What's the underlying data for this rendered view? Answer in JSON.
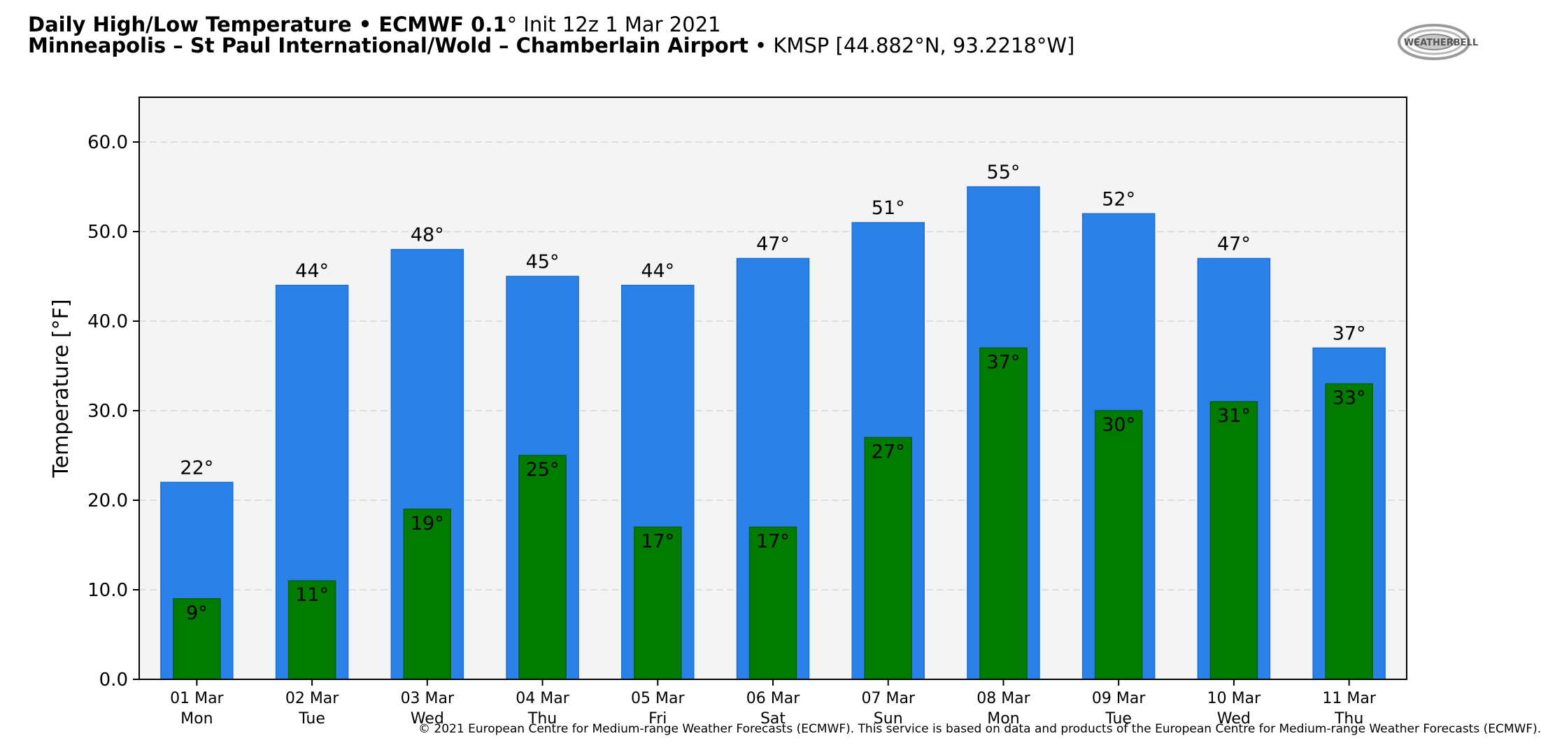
{
  "header": {
    "line1_bold": "Daily High/Low Temperature • ECMWF 0.1",
    "line1_rest": "° Init 12z 1 Mar 2021",
    "line2_bold": "Minneapolis – St Paul International/Wold – Chamberlain Airport",
    "line2_rest": " • KMSP [44.882°N, 93.2218°W]"
  },
  "logo": {
    "icon": "weatherbell-logo",
    "text": "WEATHERBELL"
  },
  "footer": {
    "copyright": "© 2021 European Centre for Medium-range Weather Forecasts (ECMWF). This service is based on data and products of the European Centre for Medium-range Weather Forecasts (ECMWF)."
  },
  "colors": {
    "high": "#2a82e8",
    "low": "#027c00",
    "plot_bg": "#f4f4f4",
    "grid": "#d6d6d6"
  },
  "chart_data": {
    "type": "bar",
    "title": "",
    "xlabel": "",
    "ylabel": "Temperature [°F]",
    "ylim": [
      0,
      65
    ],
    "yticks": [
      0,
      10,
      20,
      30,
      40,
      50,
      60
    ],
    "ytick_labels": [
      "0.0",
      "10.0",
      "20.0",
      "30.0",
      "40.0",
      "50.0",
      "60.0"
    ],
    "grid": true,
    "categories": [
      "01 Mar",
      "02 Mar",
      "03 Mar",
      "04 Mar",
      "05 Mar",
      "06 Mar",
      "07 Mar",
      "08 Mar",
      "09 Mar",
      "10 Mar",
      "11 Mar"
    ],
    "weekdays": [
      "Mon",
      "Tue",
      "Wed",
      "Thu",
      "Fri",
      "Sat",
      "Sun",
      "Mon",
      "Tue",
      "Wed",
      "Thu"
    ],
    "series": [
      {
        "values": [
          22,
          44,
          48,
          45,
          44,
          47,
          51,
          55,
          52,
          47,
          37
        ],
        "labels": [
          "22°",
          "44°",
          "48°",
          "45°",
          "44°",
          "47°",
          "51°",
          "55°",
          "52°",
          "47°",
          "37°"
        ]
      },
      {
        "values": [
          9,
          11,
          19,
          25,
          17,
          17,
          27,
          37,
          30,
          31,
          33
        ],
        "labels": [
          "9°",
          "11°",
          "19°",
          "25°",
          "17°",
          "17°",
          "27°",
          "37°",
          "30°",
          "31°",
          "33°"
        ]
      }
    ]
  }
}
